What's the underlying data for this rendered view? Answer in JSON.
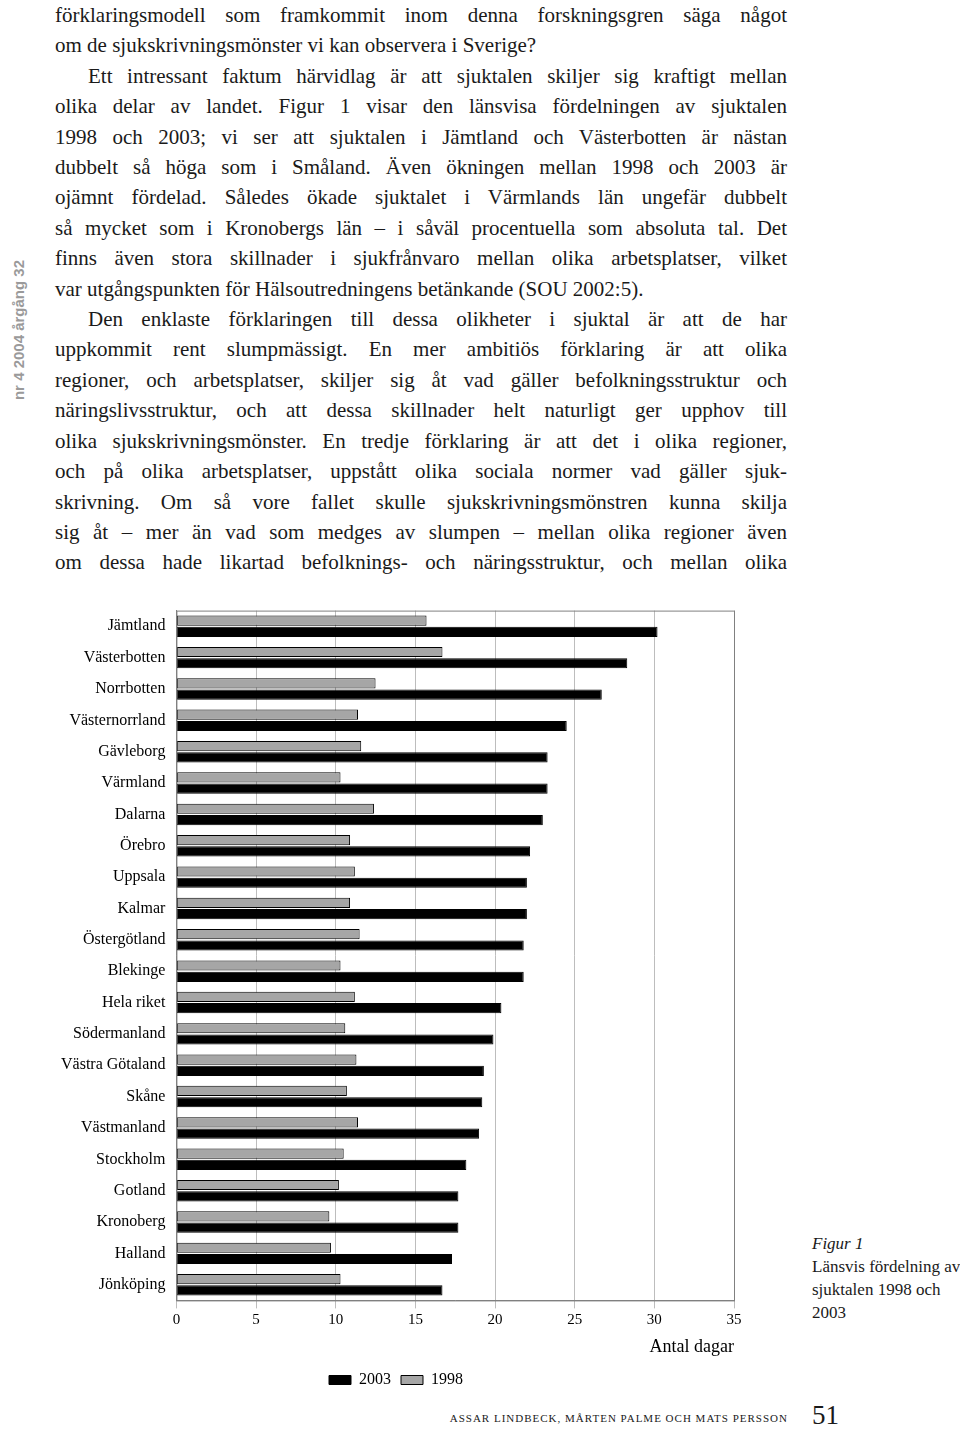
{
  "page": {
    "side_label": "nr 4 2004 årgång 32",
    "paragraphs": [
      [
        "förklaringsmodell som framkommit inom denna forskningsgren säga något",
        "om de sjukskrivningsmönster vi kan observera i Sverige?"
      ],
      [
        "Ett intressant faktum härvidlag är att sjuktalen skiljer sig kraftigt mellan",
        "olika delar av landet. Figur 1 visar den länsvisa fördelningen av sjuktalen",
        "1998 och 2003; vi ser att sjuktalen i Jämtland och Västerbotten är nästan",
        "dubbelt så höga som i Småland. Även ökningen mellan 1998 och 2003 är",
        "ojämnt fördelad. Således ökade sjuktalet i Värmlands län ungefär dubbelt",
        "så mycket som i Kronobergs län – i såväl procentuella som absoluta tal. Det",
        "finns även stora skillnader i sjukfrånvaro mellan olika arbetsplatser, vilket",
        "var utgångspunkten för Hälsoutredningens betänkande (SOU 2002:5)."
      ],
      [
        "Den enklaste förklaringen till dessa olikheter i sjuktal är att de har",
        "uppkommit rent slumpmässigt. En mer ambitiös förklaring är att olika",
        "regioner, och arbetsplatser, skiljer sig åt vad gäller befolkningsstruktur och",
        "näringslivsstruktur, och att dessa skillnader helt naturligt ger upphov till",
        "olika sjukskrivningsmönster. En tredje förklaring är att det i olika regioner,",
        "och på olika arbetsplatser, uppstått olika sociala normer vad gäller sjuk-",
        "skrivning. Om så vore fallet skulle sjukskrivningsmönstren kunna skilja",
        "sig åt – mer än vad som medges av slumpen – mellan olika regioner även",
        "om dessa hade likartad befolknings- och näringsstruktur, och mellan olika"
      ]
    ],
    "figure_caption": {
      "label": "Figur 1",
      "text": "Länsvis fördelning av sjuktalen 1998 och 2003"
    },
    "footer": {
      "authors": "assar lindbeck, mårten palme och mats persson",
      "page_number": "51"
    }
  },
  "chart_data": {
    "type": "bar",
    "orientation": "horizontal",
    "categories": [
      "Jämtland",
      "Västerbotten",
      "Norrbotten",
      "Västernorrland",
      "Gävleborg",
      "Värmland",
      "Dalarna",
      "Örebro",
      "Uppsala",
      "Kalmar",
      "Östergötland",
      "Blekinge",
      "Hela riket",
      "Södermanland",
      "Västra Götaland",
      "Skåne",
      "Västmanland",
      "Stockholm",
      "Gotland",
      "Kronoberg",
      "Halland",
      "Jönköping"
    ],
    "series": [
      {
        "name": "2003",
        "color": "#000000",
        "values": [
          30.2,
          28.3,
          26.7,
          24.5,
          23.3,
          23.3,
          23.0,
          22.2,
          22.0,
          22.0,
          21.8,
          21.8,
          20.4,
          19.9,
          19.3,
          19.2,
          19.0,
          18.2,
          17.7,
          17.7,
          17.3,
          16.7
        ]
      },
      {
        "name": "1998",
        "color": "#a6a6a6",
        "values": [
          15.7,
          16.7,
          12.5,
          11.4,
          11.6,
          10.3,
          12.4,
          10.9,
          11.2,
          10.9,
          11.5,
          10.3,
          11.2,
          10.6,
          11.3,
          10.7,
          11.4,
          10.5,
          10.2,
          9.6,
          9.7,
          10.3
        ]
      }
    ],
    "x_label": "Antal dagar",
    "xlim": [
      0,
      35
    ],
    "xticks": [
      0,
      5,
      10,
      15,
      20,
      25,
      30,
      35
    ],
    "grid": true,
    "legend": "bottom"
  }
}
